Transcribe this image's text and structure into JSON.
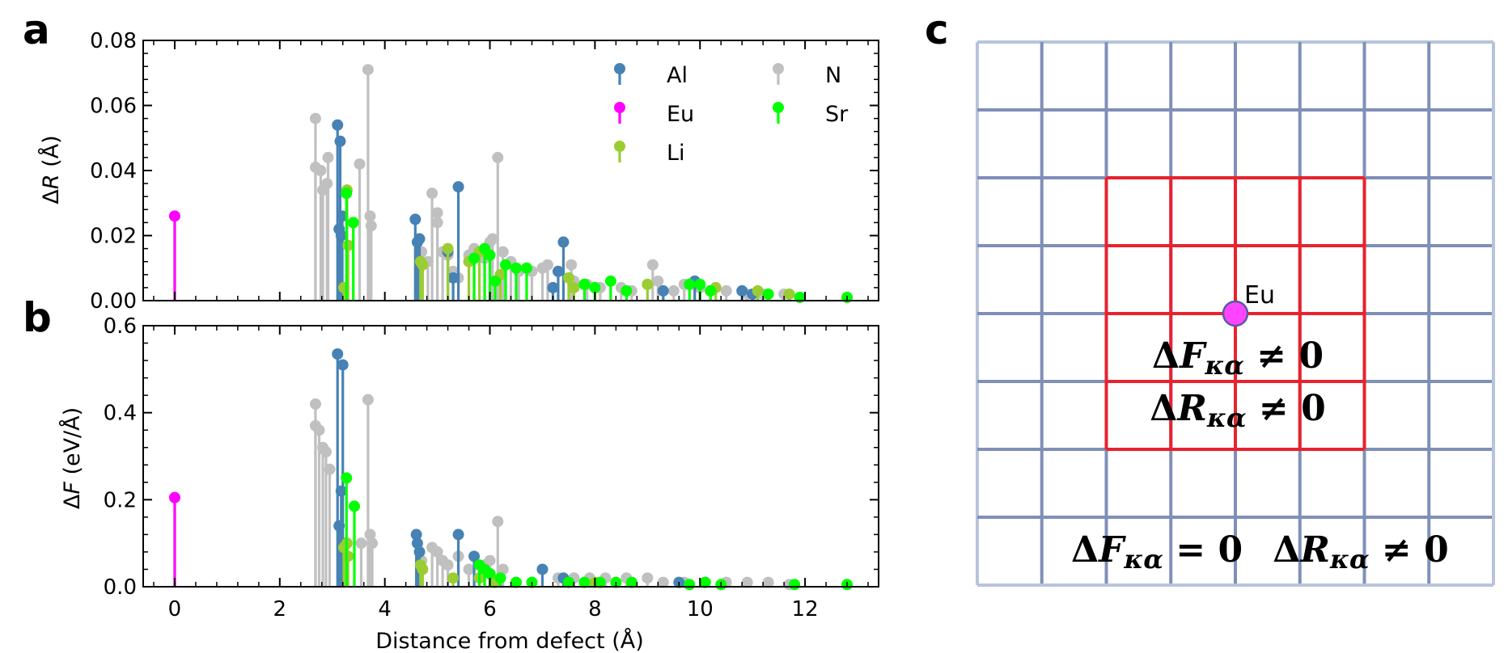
{
  "panel_labels": {
    "a": "a",
    "b": "b",
    "c": "c"
  },
  "colors": {
    "Al": "#4682b4",
    "Eu": "#ff00ff",
    "Li": "#9acd32",
    "N": "#c0c0c0",
    "Sr": "#00ff00",
    "grid_outer": "#b8c4dc",
    "grid_inner": "#7f8fb8",
    "grid_red": "#e8222e",
    "eu_atom": "#ff44ff",
    "eu_edge": "#5a5aa0"
  },
  "chart_data": [
    {
      "type": "stem",
      "panel": "a",
      "ylabel": "ΔR (Å)",
      "xlabel": "",
      "xlim": [
        -0.6,
        13.4
      ],
      "ylim": [
        0,
        0.08
      ],
      "yticks": [
        "0.00",
        "0.02",
        "0.04",
        "0.06",
        "0.08"
      ],
      "xticks": [],
      "legend": {
        "placement": "top-right",
        "entries": [
          "Al",
          "Eu",
          "Li",
          "N",
          "Sr"
        ]
      },
      "series": [
        {
          "name": "Eu",
          "points": [
            [
              0,
              0.026
            ]
          ]
        },
        {
          "name": "N",
          "points": [
            [
              2.68,
              0.056
            ],
            [
              2.68,
              0.041
            ],
            [
              2.78,
              0.04
            ],
            [
              2.82,
              0.034
            ],
            [
              2.9,
              0.036
            ],
            [
              2.92,
              0.044
            ],
            [
              3.52,
              0.042
            ],
            [
              3.68,
              0.071
            ],
            [
              3.72,
              0.026
            ],
            [
              3.74,
              0.023
            ],
            [
              4.62,
              0.018
            ],
            [
              4.7,
              0.015
            ],
            [
              4.82,
              0.012
            ],
            [
              4.9,
              0.033
            ],
            [
              5.0,
              0.027
            ],
            [
              5.0,
              0.024
            ],
            [
              5.1,
              0.015
            ],
            [
              5.2,
              0.014
            ],
            [
              5.3,
              0.009
            ],
            [
              5.4,
              0.007
            ],
            [
              5.6,
              0.014
            ],
            [
              5.7,
              0.016
            ],
            [
              5.9,
              0.013
            ],
            [
              6.0,
              0.018
            ],
            [
              6.05,
              0.019
            ],
            [
              6.15,
              0.044
            ],
            [
              6.25,
              0.015
            ],
            [
              6.4,
              0.012
            ],
            [
              6.55,
              0.009
            ],
            [
              6.8,
              0.009
            ],
            [
              7.0,
              0.01
            ],
            [
              7.1,
              0.011
            ],
            [
              7.55,
              0.011
            ],
            [
              7.6,
              0.006
            ],
            [
              7.85,
              0.005
            ],
            [
              8.1,
              0.004
            ],
            [
              8.5,
              0.004
            ],
            [
              8.7,
              0.003
            ],
            [
              9.1,
              0.011
            ],
            [
              9.2,
              0.006
            ],
            [
              9.5,
              0.003
            ],
            [
              9.7,
              0.005
            ],
            [
              10.0,
              0.004
            ],
            [
              10.2,
              0.003
            ],
            [
              10.5,
              0.003
            ],
            [
              10.9,
              0.002
            ],
            [
              11.2,
              0.002
            ],
            [
              11.6,
              0.002
            ]
          ]
        },
        {
          "name": "Al",
          "points": [
            [
              3.1,
              0.054
            ],
            [
              3.15,
              0.049
            ],
            [
              3.13,
              0.022
            ],
            [
              3.17,
              0.02
            ],
            [
              3.19,
              0.026
            ],
            [
              4.58,
              0.025
            ],
            [
              4.62,
              0.018
            ],
            [
              4.66,
              0.019
            ],
            [
              5.4,
              0.035
            ],
            [
              5.2,
              0.015
            ],
            [
              5.3,
              0.007
            ],
            [
              7.4,
              0.018
            ],
            [
              7.3,
              0.009
            ],
            [
              7.2,
              0.004
            ],
            [
              9.3,
              0.003
            ],
            [
              9.9,
              0.006
            ],
            [
              10.8,
              0.003
            ],
            [
              11.0,
              0.002
            ]
          ]
        },
        {
          "name": "Li",
          "points": [
            [
              3.22,
              0.004
            ],
            [
              3.28,
              0.034
            ],
            [
              3.3,
              0.017
            ],
            [
              4.68,
              0.012
            ],
            [
              4.72,
              0.011
            ],
            [
              5.2,
              0.016
            ],
            [
              5.6,
              0.012
            ],
            [
              5.8,
              0.015
            ],
            [
              6.2,
              0.008
            ],
            [
              7.5,
              0.007
            ],
            [
              7.6,
              0.004
            ],
            [
              9.0,
              0.005
            ],
            [
              10.3,
              0.004
            ],
            [
              11.1,
              0.003
            ],
            [
              11.7,
              0.002
            ]
          ]
        },
        {
          "name": "Sr",
          "points": [
            [
              3.27,
              0.033
            ],
            [
              3.4,
              0.024
            ],
            [
              5.7,
              0.013
            ],
            [
              5.9,
              0.016
            ],
            [
              6.0,
              0.014
            ],
            [
              6.1,
              0.006
            ],
            [
              6.3,
              0.011
            ],
            [
              6.5,
              0.01
            ],
            [
              6.7,
              0.01
            ],
            [
              7.8,
              0.005
            ],
            [
              8.0,
              0.004
            ],
            [
              8.3,
              0.006
            ],
            [
              8.6,
              0.003
            ],
            [
              9.8,
              0.005
            ],
            [
              10.0,
              0.005
            ],
            [
              10.2,
              0.003
            ],
            [
              11.3,
              0.002
            ],
            [
              11.9,
              0.001
            ],
            [
              12.8,
              0.001
            ]
          ]
        }
      ]
    },
    {
      "type": "stem",
      "panel": "b",
      "ylabel": "ΔF (eV/Å)",
      "xlabel": "Distance from defect (Å)",
      "xlim": [
        -0.6,
        13.4
      ],
      "ylim": [
        0,
        0.6
      ],
      "yticks": [
        "0.0",
        "0.2",
        "0.4",
        "0.6"
      ],
      "xticks": [
        "0",
        "2",
        "4",
        "6",
        "8",
        "10",
        "12"
      ],
      "series": [
        {
          "name": "Eu",
          "points": [
            [
              0,
              0.205
            ]
          ]
        },
        {
          "name": "N",
          "points": [
            [
              2.68,
              0.42
            ],
            [
              2.68,
              0.37
            ],
            [
              2.75,
              0.36
            ],
            [
              2.82,
              0.32
            ],
            [
              2.88,
              0.31
            ],
            [
              2.95,
              0.27
            ],
            [
              3.55,
              0.1
            ],
            [
              3.68,
              0.43
            ],
            [
              3.72,
              0.12
            ],
            [
              3.76,
              0.1
            ],
            [
              4.7,
              0.06
            ],
            [
              4.9,
              0.09
            ],
            [
              5.0,
              0.08
            ],
            [
              5.1,
              0.06
            ],
            [
              5.2,
              0.05
            ],
            [
              5.4,
              0.07
            ],
            [
              5.6,
              0.04
            ],
            [
              5.9,
              0.05
            ],
            [
              6.0,
              0.06
            ],
            [
              6.15,
              0.15
            ],
            [
              6.25,
              0.04
            ],
            [
              6.5,
              0.01
            ],
            [
              7.3,
              0.02
            ],
            [
              7.6,
              0.02
            ],
            [
              7.9,
              0.02
            ],
            [
              8.2,
              0.02
            ],
            [
              8.6,
              0.02
            ],
            [
              9.0,
              0.02
            ],
            [
              9.3,
              0.01
            ],
            [
              9.7,
              0.01
            ],
            [
              10.1,
              0.01
            ],
            [
              10.5,
              0.01
            ],
            [
              10.9,
              0.01
            ],
            [
              11.3,
              0.01
            ],
            [
              11.7,
              0.005
            ]
          ]
        },
        {
          "name": "Al",
          "points": [
            [
              3.1,
              0.535
            ],
            [
              3.2,
              0.51
            ],
            [
              3.13,
              0.14
            ],
            [
              3.17,
              0.22
            ],
            [
              3.21,
              0.1
            ],
            [
              4.6,
              0.12
            ],
            [
              4.62,
              0.1
            ],
            [
              4.66,
              0.08
            ],
            [
              5.4,
              0.12
            ],
            [
              5.7,
              0.07
            ],
            [
              7.0,
              0.04
            ],
            [
              7.4,
              0.02
            ],
            [
              9.6,
              0.01
            ]
          ]
        },
        {
          "name": "Li",
          "points": [
            [
              3.22,
              0.09
            ],
            [
              3.28,
              0.1
            ],
            [
              3.3,
              0.07
            ],
            [
              4.68,
              0.05
            ],
            [
              4.72,
              0.04
            ],
            [
              5.3,
              0.02
            ],
            [
              5.8,
              0.02
            ],
            [
              6.1,
              0.01
            ],
            [
              8.0,
              0.01
            ]
          ]
        },
        {
          "name": "Sr",
          "points": [
            [
              3.27,
              0.25
            ],
            [
              3.42,
              0.185
            ],
            [
              5.8,
              0.05
            ],
            [
              5.9,
              0.04
            ],
            [
              6.0,
              0.03
            ],
            [
              6.2,
              0.02
            ],
            [
              6.5,
              0.01
            ],
            [
              6.8,
              0.01
            ],
            [
              7.5,
              0.01
            ],
            [
              7.8,
              0.01
            ],
            [
              8.1,
              0.01
            ],
            [
              8.4,
              0.01
            ],
            [
              8.7,
              0.01
            ],
            [
              9.8,
              0.005
            ],
            [
              10.1,
              0.01
            ],
            [
              10.4,
              0.005
            ],
            [
              11.8,
              0.005
            ],
            [
              12.8,
              0.005
            ]
          ]
        }
      ]
    }
  ],
  "panel_c": {
    "atom_label": "Eu",
    "inner_eq_1": "ΔF_κα ≠ 0",
    "inner_eq_2": "ΔR_κα ≠ 0",
    "outer_eq_1": "ΔF_κα = 0",
    "outer_eq_2": "ΔR_κα ≠ 0",
    "inner_eq_1_text": "ΔFκα ≠ 0",
    "inner_eq_2_text": "ΔRκα ≠ 0",
    "outer_eq_1_text": "ΔFκα = 0",
    "outer_eq_2_text": "ΔRκα ≠ 0"
  }
}
